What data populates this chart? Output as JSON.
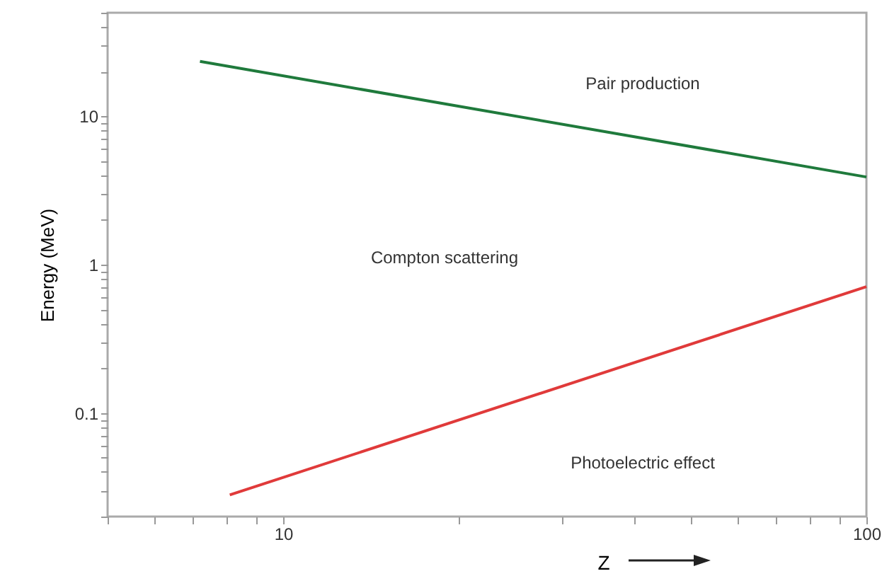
{
  "chart_data": {
    "type": "line",
    "xlabel": "Z",
    "ylabel": "Energy  (MeV)",
    "log": "xy",
    "grid": false,
    "marker": "none",
    "line_style": "solid",
    "xlim": [
      5,
      100
    ],
    "ylim": [
      0.02,
      50
    ],
    "xticks": [
      {
        "value": 5,
        "label": null
      },
      {
        "value": 6,
        "label": null
      },
      {
        "value": 7,
        "label": null
      },
      {
        "value": 8,
        "label": null
      },
      {
        "value": 9,
        "label": null
      },
      10,
      {
        "value": 20,
        "label": null
      },
      {
        "value": 30,
        "label": null
      },
      {
        "value": 40,
        "label": null
      },
      {
        "value": 50,
        "label": null
      },
      {
        "value": 60,
        "label": null
      },
      {
        "value": 70,
        "label": null
      },
      {
        "value": 80,
        "label": null
      },
      {
        "value": 90,
        "label": null
      },
      100
    ],
    "yticks": [
      {
        "value": 0.02,
        "label": null
      },
      {
        "value": 0.03,
        "label": null
      },
      {
        "value": 0.04,
        "label": null
      },
      {
        "value": 0.05,
        "label": null
      },
      {
        "value": 0.06,
        "label": null
      },
      {
        "value": 0.07,
        "label": null
      },
      {
        "value": 0.08,
        "label": null
      },
      {
        "value": 0.09,
        "label": null
      },
      0.1,
      {
        "value": 0.2,
        "label": null
      },
      {
        "value": 0.3,
        "label": null
      },
      {
        "value": 0.4,
        "label": null
      },
      {
        "value": 0.5,
        "label": null
      },
      {
        "value": 0.6,
        "label": null
      },
      {
        "value": 0.7,
        "label": null
      },
      {
        "value": 0.8,
        "label": null
      },
      {
        "value": 0.9,
        "label": null
      },
      1,
      {
        "value": 2,
        "label": null
      },
      {
        "value": 3,
        "label": null
      },
      {
        "value": 4,
        "label": null
      },
      {
        "value": 5,
        "label": null
      },
      {
        "value": 6,
        "label": null
      },
      {
        "value": 7,
        "label": null
      },
      {
        "value": 8,
        "label": null
      },
      {
        "value": 9,
        "label": null
      },
      10,
      {
        "value": 20,
        "label": null
      },
      {
        "value": 30,
        "label": null
      },
      {
        "value": 40,
        "label": null
      },
      {
        "value": 50,
        "label": null
      }
    ],
    "series": [
      {
        "color": "#1f7a3c",
        "x": [
          7.2,
          100
        ],
        "values": [
          23.5,
          3.9
        ]
      },
      {
        "color": "#e03a3a",
        "x": [
          8.1,
          100
        ],
        "values": [
          0.028,
          0.71
        ]
      }
    ],
    "annotations": [
      "Pair production",
      "Compton scattering",
      "Photoelectric effect"
    ]
  }
}
